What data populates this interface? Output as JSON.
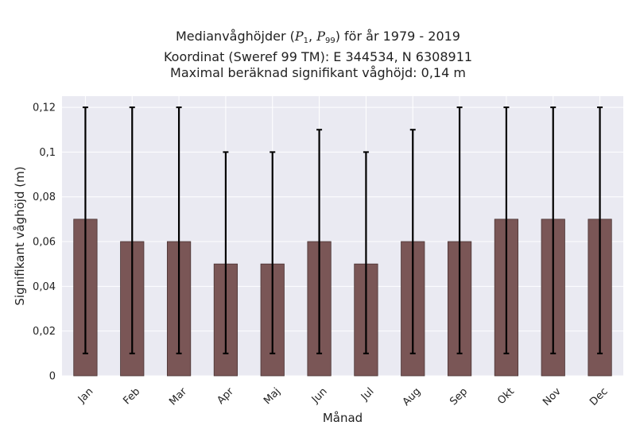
{
  "chart_data": {
    "type": "bar",
    "title_lines": [
      "Medianvåghöjder (P1, P99) för år 1979 - 2019",
      "Koordinat (Sweref 99 TM): E 344534, N 6308911",
      "Maximal beräknad signifikant våghöjd: 0,14 m"
    ],
    "title_math": {
      "prefix": "Medianvåghöjder (",
      "sym": "P",
      "sub1": "1",
      "sep": ", ",
      "sub2": "99",
      "suffix": ") för år 1979 - 2019"
    },
    "xlabel": "Månad",
    "ylabel": "Signifikant våghöjd (m)",
    "categories": [
      "Jan",
      "Feb",
      "Mar",
      "Apr",
      "Maj",
      "Jun",
      "Jul",
      "Aug",
      "Sep",
      "Okt",
      "Nov",
      "Dec"
    ],
    "series": [
      {
        "values": [
          0.07,
          0.06,
          0.06,
          0.05,
          0.05,
          0.06,
          0.05,
          0.06,
          0.06,
          0.07,
          0.07,
          0.07
        ],
        "p1": [
          0.01,
          0.01,
          0.01,
          0.01,
          0.01,
          0.01,
          0.01,
          0.01,
          0.01,
          0.01,
          0.01,
          0.01
        ],
        "p99": [
          0.12,
          0.12,
          0.12,
          0.1,
          0.1,
          0.11,
          0.1,
          0.11,
          0.12,
          0.12,
          0.12,
          0.12
        ]
      }
    ],
    "ylim": [
      0,
      0.125
    ],
    "yticks": [
      0,
      0.02,
      0.04,
      0.06,
      0.08,
      0.1,
      0.12
    ],
    "ytick_labels": [
      "0",
      "0,02",
      "0,04",
      "0,06",
      "0,08",
      "0,1",
      "0,12"
    ],
    "grid": true,
    "colors": {
      "bar": "#7a5656",
      "bar_edge": "#4a3434",
      "error": "#000000",
      "panel": "#eaeaf2",
      "grid": "#ffffff"
    }
  }
}
